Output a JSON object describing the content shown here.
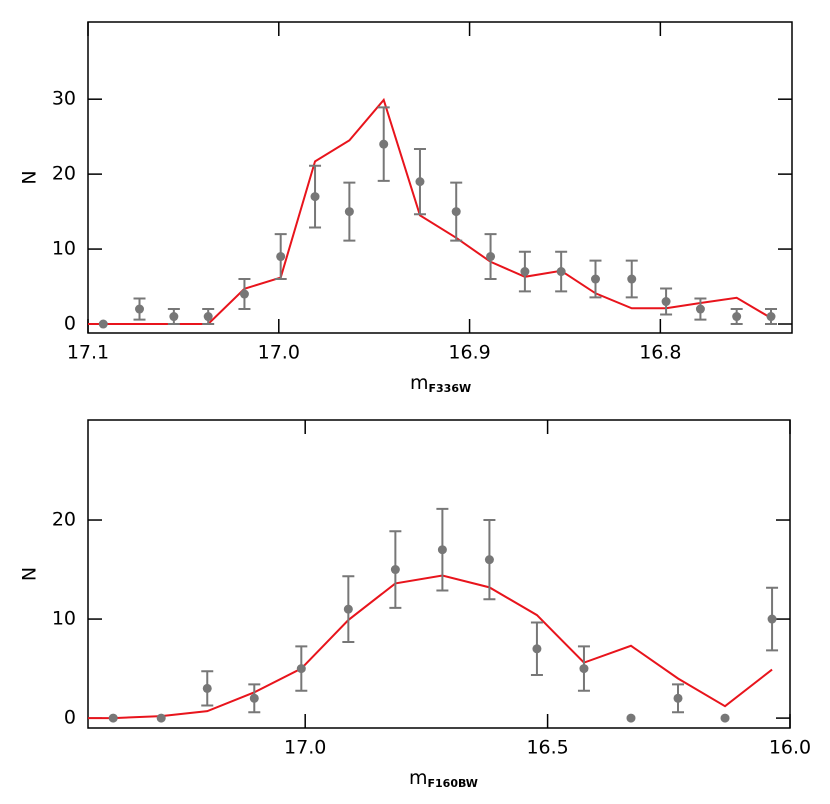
{
  "chart_data": [
    {
      "type": "errorbar-line",
      "ylabel": "N",
      "xlabel": "m",
      "xlabel_sub": "F336W",
      "xlim": [
        17.1,
        16.731
      ],
      "ylim": [
        -1.2,
        40.3
      ],
      "xticks": [
        17.1,
        {
          "value": 17.0,
          "label": "17.0"
        },
        16.9,
        16.8
      ],
      "yticks": [
        0,
        10,
        20,
        30
      ],
      "points": {
        "color": "#777777",
        "x": [
          17.092,
          17.073,
          17.055,
          17.037,
          17.018,
          16.999,
          16.981,
          16.963,
          16.945,
          16.926,
          16.907,
          16.889,
          16.871,
          16.852,
          16.834,
          16.815,
          16.797,
          16.779,
          16.76,
          16.742
        ],
        "values": [
          0,
          2,
          1,
          1,
          4,
          9,
          17,
          15,
          24,
          19,
          15,
          9,
          7,
          7,
          6,
          6,
          3,
          2,
          1,
          1
        ],
        "errors": [
          0,
          1.41,
          1,
          1,
          2,
          3,
          4.12,
          3.87,
          4.9,
          4.36,
          3.87,
          3,
          2.65,
          2.65,
          2.45,
          2.45,
          1.73,
          1.41,
          1,
          1
        ]
      },
      "model": {
        "color": "#e8141c",
        "x": [
          17.1,
          17.037,
          17.018,
          16.999,
          16.981,
          16.963,
          16.945,
          16.926,
          16.907,
          16.889,
          16.871,
          16.852,
          16.834,
          16.815,
          16.797,
          16.779,
          16.76,
          16.742
        ],
        "values": [
          0,
          0,
          4.7,
          6.2,
          21.7,
          24.5,
          29.9,
          14.5,
          11.5,
          8.3,
          6.3,
          7.1,
          4.1,
          2.1,
          2.1,
          2.8,
          3.5,
          0.8
        ]
      }
    },
    {
      "type": "errorbar-line",
      "ylabel": "N",
      "xlabel": "m",
      "xlabel_sub": "F160BW",
      "xlim": [
        17.448,
        16.0
      ],
      "ylim": [
        -1.0,
        30.1
      ],
      "xticks": [
        {
          "value": 17.0,
          "label": "17.0"
        },
        16.5,
        {
          "value": 16.0,
          "label": "16.0"
        }
      ],
      "yticks": [
        0,
        10,
        20
      ],
      "points": {
        "color": "#777777",
        "x": [
          17.396,
          17.297,
          17.202,
          17.105,
          17.008,
          16.911,
          16.814,
          16.717,
          16.62,
          16.522,
          16.425,
          16.328,
          16.231,
          16.134,
          16.037
        ],
        "values": [
          0,
          0,
          3,
          2,
          5,
          11,
          15,
          17,
          16,
          7,
          5,
          0,
          2,
          0,
          10
        ],
        "errors": [
          0,
          0,
          1.73,
          1.41,
          2.24,
          3.32,
          3.87,
          4.12,
          4,
          2.65,
          2.24,
          0,
          1.41,
          0,
          3.16
        ]
      },
      "model": {
        "color": "#e8141c",
        "x": [
          17.448,
          17.396,
          17.297,
          17.202,
          17.105,
          17.008,
          16.911,
          16.814,
          16.717,
          16.62,
          16.522,
          16.425,
          16.328,
          16.231,
          16.134,
          16.037
        ],
        "values": [
          0,
          0,
          0.2,
          0.7,
          2.6,
          5.0,
          9.9,
          13.6,
          14.4,
          13.2,
          10.4,
          5.6,
          7.3,
          4.0,
          1.2,
          4.9
        ]
      }
    }
  ]
}
